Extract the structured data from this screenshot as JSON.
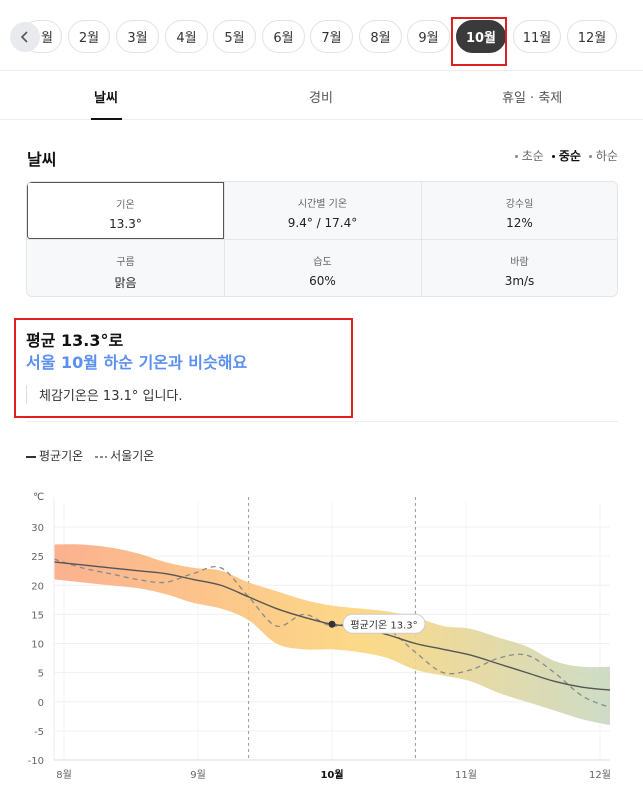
{
  "months": {
    "back_label": "<",
    "items": [
      {
        "label": "월"
      },
      {
        "label": "2월"
      },
      {
        "label": "3월"
      },
      {
        "label": "4월"
      },
      {
        "label": "5월"
      },
      {
        "label": "6월"
      },
      {
        "label": "7월"
      },
      {
        "label": "8월"
      },
      {
        "label": "9월"
      },
      {
        "label": "10월"
      },
      {
        "label": "11월"
      },
      {
        "label": "12월"
      }
    ],
    "selected": "10월"
  },
  "tabs": [
    {
      "label": "날씨"
    },
    {
      "label": "경비"
    },
    {
      "label": "휴일 · 축제"
    }
  ],
  "weather": {
    "title": "날씨",
    "periods": [
      "초순",
      "중순",
      "하순"
    ],
    "selected_period": "중순",
    "cells": [
      {
        "label": "기온",
        "value": "13.3°"
      },
      {
        "label": "시간별 기온",
        "value": "9.4° / 17.4°"
      },
      {
        "label": "강수일",
        "value": "12%"
      },
      {
        "label": "구름",
        "value": "맑음"
      },
      {
        "label": "습도",
        "value": "60%"
      },
      {
        "label": "바람",
        "value": "3m/s"
      }
    ]
  },
  "summary": {
    "line1": "평균 13.3°로",
    "line2": "서울 10월 하순 기온과 비슷해요",
    "line3": "체감기온은 13.1° 입니다."
  },
  "legend": {
    "solid_label": "평균기온",
    "dashed_label": "서울기온"
  },
  "colors": {
    "accent_blue": "#5b8ff0",
    "highlight_red": "#e02020",
    "band_warm": "#fba883",
    "band_mid": "#fcd57a",
    "band_cool": "#c8d8c0"
  },
  "chart_data": {
    "type": "line",
    "ylabel": "℃",
    "ylim": [
      -10,
      30
    ],
    "yticks": [
      "30",
      "25",
      "20",
      "15",
      "10",
      "5",
      "0",
      "-5",
      "-10"
    ],
    "xtick_labels": [
      "8월",
      "9월",
      "10월",
      "11월",
      "12월"
    ],
    "x": [
      0,
      1,
      2,
      3,
      4,
      5,
      6,
      7,
      8,
      9,
      10,
      11,
      12,
      13,
      14,
      15,
      16,
      17,
      18,
      19,
      20
    ],
    "series": [
      {
        "name": "평균기온",
        "values": [
          24,
          23.5,
          23,
          22.5,
          22,
          21,
          20,
          18,
          16,
          14.5,
          13.3,
          12.8,
          11.5,
          10,
          9,
          8,
          6.5,
          5,
          3.5,
          2.5,
          2
        ]
      },
      {
        "name": "서울기온",
        "values": [
          24.5,
          23,
          22,
          21,
          20.5,
          22,
          23,
          18,
          13,
          15,
          13,
          14,
          12.5,
          8.5,
          5,
          5.5,
          7.5,
          8,
          5,
          1,
          -1
        ]
      },
      {
        "name": "upper",
        "values": [
          27,
          27,
          26.5,
          25.5,
          24,
          23,
          22.5,
          20.5,
          19,
          17.5,
          16.5,
          16,
          15.5,
          14.5,
          13,
          12.5,
          11,
          9.5,
          7,
          6,
          6
        ]
      },
      {
        "name": "lower",
        "values": [
          21,
          20.5,
          20,
          19.5,
          18.5,
          17,
          16,
          14,
          10,
          9,
          9,
          8.5,
          7.5,
          5.5,
          4.5,
          3.5,
          1.5,
          0,
          -1.5,
          -3,
          -4
        ]
      }
    ],
    "marker": {
      "x": 10,
      "y": 13.3,
      "label": "평균기온 13.3°"
    },
    "highlight_range": [
      7,
      13
    ],
    "grid": true
  }
}
